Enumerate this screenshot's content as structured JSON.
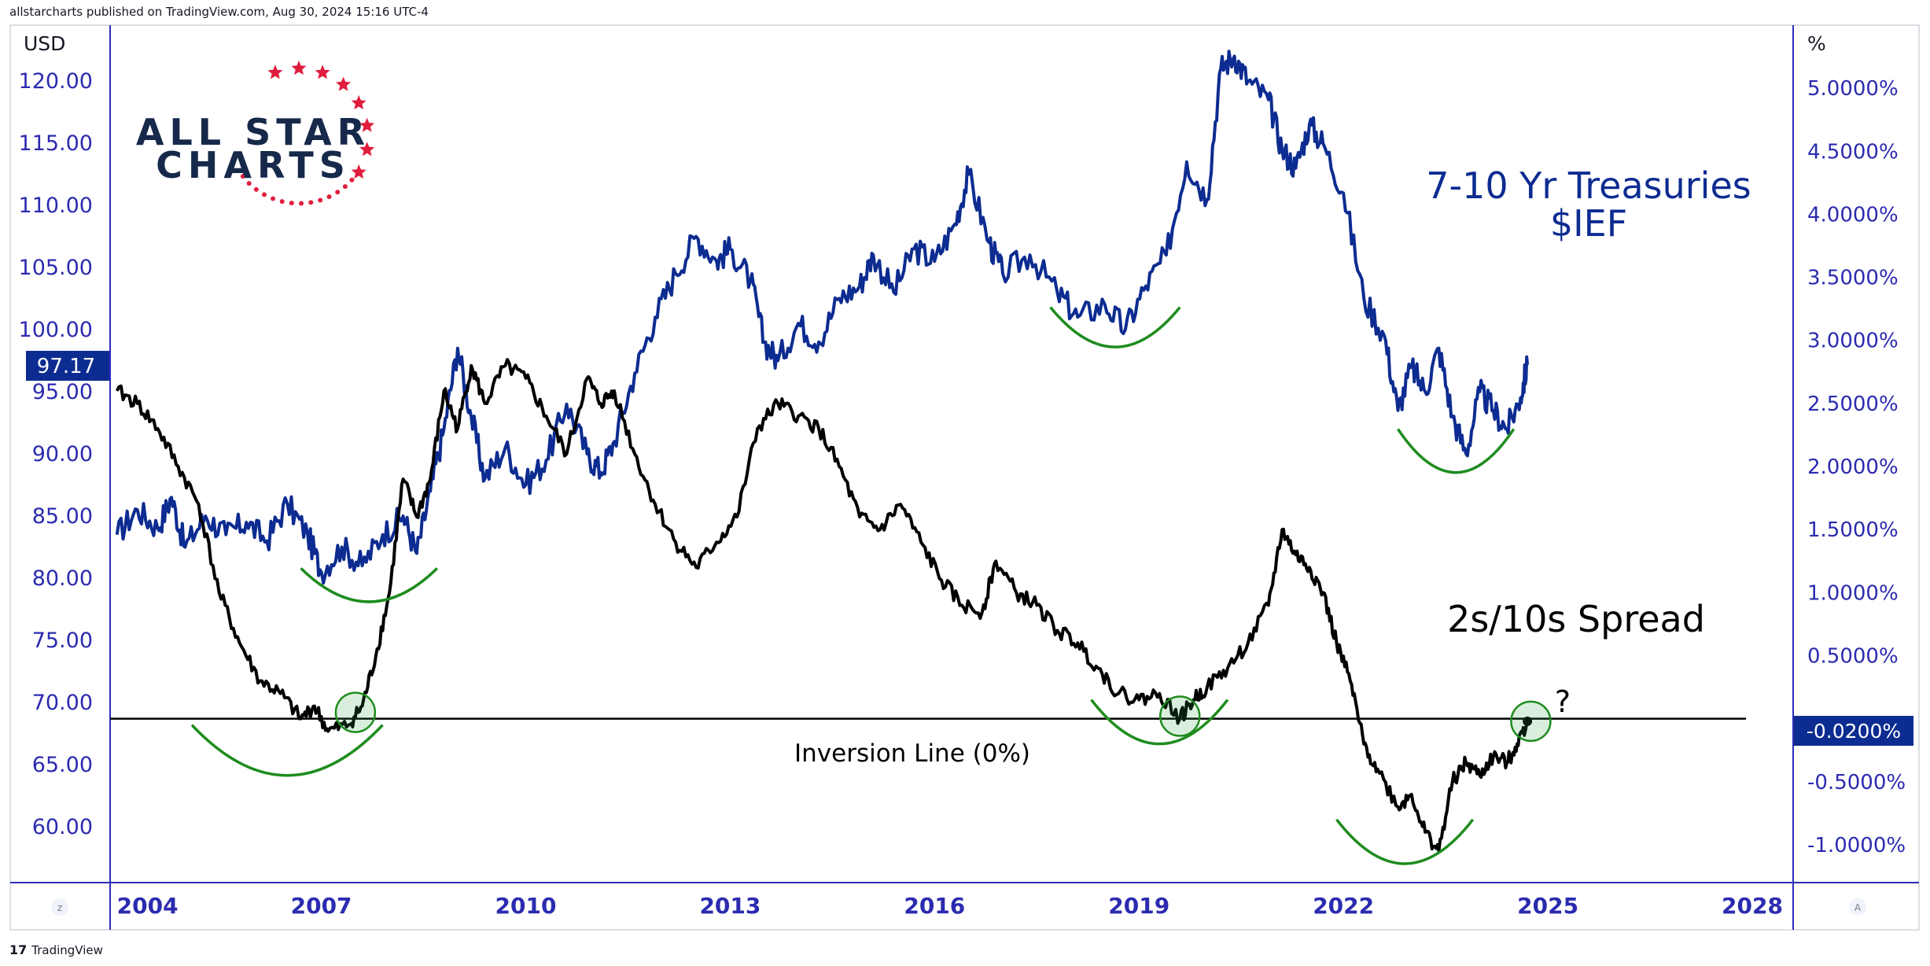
{
  "header": {
    "published": "allstarcharts published on TradingView.com, Aug 30, 2024 15:16 UTC-4"
  },
  "footer": {
    "brand": "TradingView",
    "brand_mark": "17"
  },
  "logo": {
    "line1": "ALL STAR",
    "line2": "CHARTS",
    "star_color": "#e11d3d",
    "text_color": "#16294a"
  },
  "colors": {
    "ief": "#0d2c91",
    "spread": "#000000",
    "arc": "#1e8c1e",
    "axis_text": "#2b2bb0",
    "frame": "#2d2db8"
  },
  "chart_data": {
    "type": "line",
    "left_axis": {
      "unit": "USD",
      "ticks": [
        "120.00",
        "115.00",
        "110.00",
        "105.00",
        "100.00",
        "95.00",
        "90.00",
        "85.00",
        "80.00",
        "75.00",
        "70.00",
        "65.00",
        "60.00"
      ],
      "range": [
        55.5,
        124.5
      ]
    },
    "right_axis": {
      "unit": "%",
      "ticks": [
        "5.0000%",
        "4.5000%",
        "4.0000%",
        "3.5000%",
        "3.0000%",
        "2.5000%",
        "2.0000%",
        "1.5000%",
        "1.0000%",
        "0.5000%",
        "-0.5000%",
        "-1.0000%"
      ],
      "range": [
        -1.3,
        5.5
      ]
    },
    "x_axis": {
      "ticks": [
        "2004",
        "2007",
        "2010",
        "2013",
        "2016",
        "2019",
        "2022",
        "2025",
        "2028"
      ],
      "range": [
        2003.9,
        2028.6
      ]
    },
    "current_left": "97.17",
    "current_right": "-0.0200%",
    "annotations": {
      "ief_label_1": "7-10 Yr Treasuries",
      "ief_label_2": "$IEF",
      "spread_label": "2s/10s Spread",
      "inversion_label": "Inversion Line (0%)",
      "question": "?"
    },
    "inversion_level": 0,
    "series": [
      {
        "name": "7-10 Yr Treasuries $IEF",
        "axis": "left",
        "points": [
          [
            2004.0,
            83.5
          ],
          [
            2004.3,
            85.5
          ],
          [
            2004.6,
            84.0
          ],
          [
            2004.8,
            86.5
          ],
          [
            2005.0,
            82.5
          ],
          [
            2005.3,
            85.0
          ],
          [
            2005.6,
            83.5
          ],
          [
            2005.9,
            84.5
          ],
          [
            2006.2,
            83.0
          ],
          [
            2006.5,
            86.0
          ],
          [
            2006.8,
            83.5
          ],
          [
            2007.0,
            80.5
          ],
          [
            2007.3,
            82.5
          ],
          [
            2007.6,
            81.0
          ],
          [
            2007.9,
            83.5
          ],
          [
            2008.2,
            85.0
          ],
          [
            2008.4,
            82.0
          ],
          [
            2008.6,
            87.0
          ],
          [
            2008.8,
            92.0
          ],
          [
            2009.0,
            98.5
          ],
          [
            2009.2,
            93.0
          ],
          [
            2009.4,
            88.0
          ],
          [
            2009.7,
            90.5
          ],
          [
            2010.0,
            87.5
          ],
          [
            2010.3,
            89.5
          ],
          [
            2010.6,
            94.0
          ],
          [
            2010.9,
            90.0
          ],
          [
            2011.1,
            88.5
          ],
          [
            2011.3,
            91.0
          ],
          [
            2011.6,
            96.5
          ],
          [
            2011.9,
            101.0
          ],
          [
            2012.2,
            104.5
          ],
          [
            2012.5,
            107.5
          ],
          [
            2012.8,
            105.5
          ],
          [
            2013.0,
            106.5
          ],
          [
            2013.3,
            104.0
          ],
          [
            2013.5,
            99.0
          ],
          [
            2013.7,
            97.5
          ],
          [
            2014.0,
            100.5
          ],
          [
            2014.3,
            99.0
          ],
          [
            2014.6,
            102.5
          ],
          [
            2014.9,
            103.5
          ],
          [
            2015.1,
            106.0
          ],
          [
            2015.4,
            103.0
          ],
          [
            2015.7,
            106.5
          ],
          [
            2016.0,
            105.5
          ],
          [
            2016.3,
            108.5
          ],
          [
            2016.5,
            112.5
          ],
          [
            2016.8,
            107.0
          ],
          [
            2017.0,
            104.5
          ],
          [
            2017.4,
            106.0
          ],
          [
            2017.8,
            103.0
          ],
          [
            2018.1,
            101.0
          ],
          [
            2018.5,
            102.0
          ],
          [
            2018.8,
            100.0
          ],
          [
            2019.1,
            103.5
          ],
          [
            2019.4,
            106.0
          ],
          [
            2019.7,
            113.5
          ],
          [
            2020.0,
            110.5
          ],
          [
            2020.2,
            121.0
          ],
          [
            2020.4,
            122.0
          ],
          [
            2020.6,
            120.0
          ],
          [
            2020.9,
            118.5
          ],
          [
            2021.1,
            114.5
          ],
          [
            2021.3,
            113.0
          ],
          [
            2021.5,
            116.5
          ],
          [
            2021.7,
            115.0
          ],
          [
            2022.0,
            111.0
          ],
          [
            2022.3,
            102.5
          ],
          [
            2022.6,
            99.5
          ],
          [
            2022.8,
            93.5
          ],
          [
            2023.0,
            97.0
          ],
          [
            2023.2,
            95.0
          ],
          [
            2023.4,
            98.5
          ],
          [
            2023.6,
            93.0
          ],
          [
            2023.8,
            90.0
          ],
          [
            2024.0,
            95.0
          ],
          [
            2024.2,
            93.5
          ],
          [
            2024.4,
            92.0
          ],
          [
            2024.6,
            94.5
          ],
          [
            2024.7,
            97.17
          ]
        ]
      },
      {
        "name": "2s/10s Spread",
        "axis": "right",
        "points": [
          [
            2004.0,
            2.6
          ],
          [
            2004.3,
            2.5
          ],
          [
            2004.6,
            2.3
          ],
          [
            2004.9,
            2.0
          ],
          [
            2005.2,
            1.7
          ],
          [
            2005.5,
            1.0
          ],
          [
            2005.8,
            0.6
          ],
          [
            2006.1,
            0.3
          ],
          [
            2006.4,
            0.2
          ],
          [
            2006.7,
            0.0
          ],
          [
            2006.9,
            0.1
          ],
          [
            2007.1,
            -0.1
          ],
          [
            2007.4,
            -0.05
          ],
          [
            2007.6,
            0.1
          ],
          [
            2007.8,
            0.5
          ],
          [
            2008.0,
            1.0
          ],
          [
            2008.2,
            1.9
          ],
          [
            2008.4,
            1.6
          ],
          [
            2008.6,
            1.9
          ],
          [
            2008.8,
            2.6
          ],
          [
            2009.0,
            2.3
          ],
          [
            2009.2,
            2.8
          ],
          [
            2009.4,
            2.5
          ],
          [
            2009.7,
            2.8
          ],
          [
            2010.0,
            2.7
          ],
          [
            2010.3,
            2.4
          ],
          [
            2010.6,
            2.1
          ],
          [
            2010.9,
            2.7
          ],
          [
            2011.1,
            2.5
          ],
          [
            2011.3,
            2.6
          ],
          [
            2011.6,
            2.1
          ],
          [
            2011.9,
            1.7
          ],
          [
            2012.2,
            1.4
          ],
          [
            2012.5,
            1.2
          ],
          [
            2012.8,
            1.4
          ],
          [
            2013.1,
            1.6
          ],
          [
            2013.4,
            2.3
          ],
          [
            2013.7,
            2.5
          ],
          [
            2014.0,
            2.4
          ],
          [
            2014.3,
            2.3
          ],
          [
            2014.6,
            2.0
          ],
          [
            2014.9,
            1.6
          ],
          [
            2015.2,
            1.5
          ],
          [
            2015.5,
            1.7
          ],
          [
            2015.8,
            1.4
          ],
          [
            2016.1,
            1.1
          ],
          [
            2016.4,
            0.9
          ],
          [
            2016.7,
            0.85
          ],
          [
            2016.9,
            1.25
          ],
          [
            2017.2,
            1.0
          ],
          [
            2017.5,
            0.9
          ],
          [
            2017.8,
            0.7
          ],
          [
            2018.1,
            0.6
          ],
          [
            2018.4,
            0.4
          ],
          [
            2018.7,
            0.2
          ],
          [
            2019.0,
            0.15
          ],
          [
            2019.3,
            0.2
          ],
          [
            2019.6,
            0.0
          ],
          [
            2019.8,
            0.15
          ],
          [
            2020.0,
            0.25
          ],
          [
            2020.3,
            0.4
          ],
          [
            2020.6,
            0.6
          ],
          [
            2020.9,
            0.9
          ],
          [
            2021.1,
            1.5
          ],
          [
            2021.3,
            1.3
          ],
          [
            2021.5,
            1.2
          ],
          [
            2021.7,
            1.0
          ],
          [
            2021.9,
            0.6
          ],
          [
            2022.1,
            0.3
          ],
          [
            2022.3,
            -0.2
          ],
          [
            2022.5,
            -0.4
          ],
          [
            2022.8,
            -0.7
          ],
          [
            2023.0,
            -0.6
          ],
          [
            2023.2,
            -0.9
          ],
          [
            2023.4,
            -1.05
          ],
          [
            2023.6,
            -0.5
          ],
          [
            2023.8,
            -0.35
          ],
          [
            2024.0,
            -0.45
          ],
          [
            2024.2,
            -0.3
          ],
          [
            2024.4,
            -0.35
          ],
          [
            2024.55,
            -0.2
          ],
          [
            2024.7,
            -0.02
          ]
        ]
      }
    ],
    "arcs": [
      {
        "series": "ief",
        "x1": 2006.7,
        "x2": 2008.7,
        "y": 80.8,
        "depth": 2.7
      },
      {
        "series": "ief",
        "x1": 2017.7,
        "x2": 2019.6,
        "y": 101.8,
        "depth": 3.2
      },
      {
        "series": "ief",
        "x1": 2022.8,
        "x2": 2024.5,
        "y": 92.0,
        "depth": 3.5
      },
      {
        "series": "spread",
        "x1": 2005.1,
        "x2": 2007.9,
        "y": -0.05,
        "depth": 0.4
      },
      {
        "series": "spread",
        "x1": 2018.3,
        "x2": 2020.3,
        "y": 0.15,
        "depth": 0.35
      },
      {
        "series": "spread",
        "x1": 2021.9,
        "x2": 2023.9,
        "y": -0.8,
        "depth": 0.35
      }
    ],
    "circles": [
      {
        "x": 2007.5,
        "y": 0.05
      },
      {
        "x": 2019.6,
        "y": 0.02
      },
      {
        "x": 2024.75,
        "y": -0.02
      }
    ]
  }
}
